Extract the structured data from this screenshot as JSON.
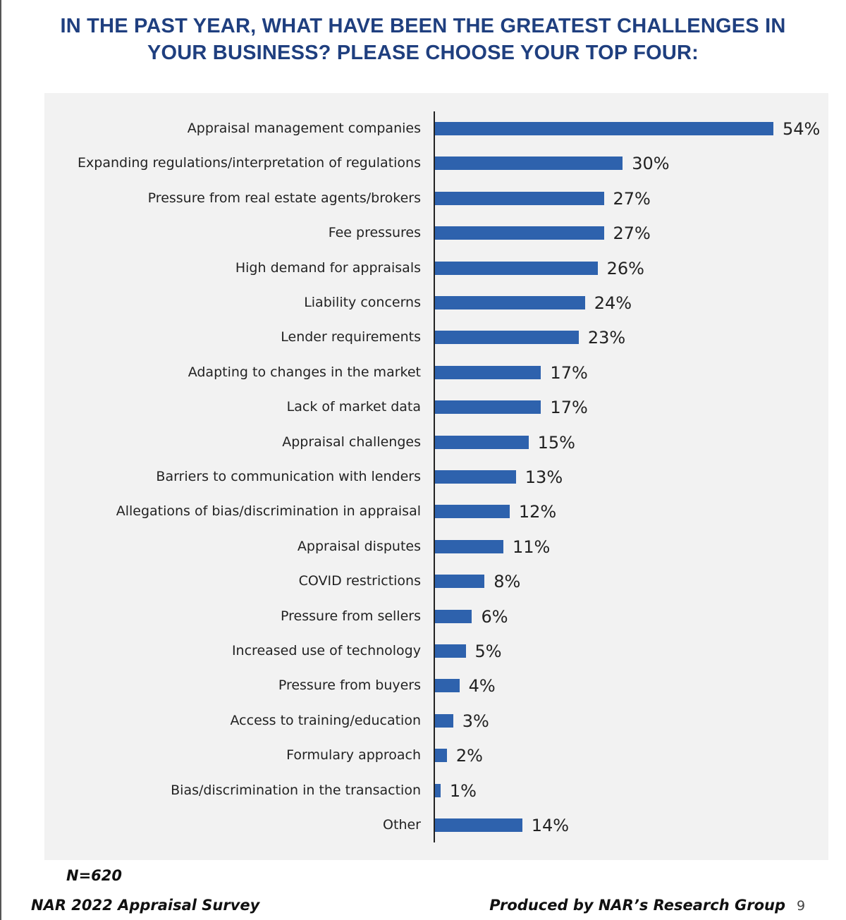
{
  "chart_data": {
    "type": "bar",
    "orientation": "horizontal",
    "title": "IN THE PAST YEAR, WHAT HAVE BEEN THE GREATEST CHALLENGES IN YOUR BUSINESS? PLEASE CHOOSE YOUR TOP FOUR:",
    "categories": [
      "Appraisal management companies",
      "Expanding regulations/interpretation of regulations",
      "Pressure from real estate agents/brokers",
      "Fee pressures",
      "High demand for appraisals",
      "Liability concerns",
      "Lender requirements",
      "Adapting to changes in the market",
      "Lack of market data",
      "Appraisal challenges",
      "Barriers to communication with lenders",
      "Allegations of bias/discrimination in appraisal",
      "Appraisal disputes",
      "COVID restrictions",
      "Pressure from sellers",
      "Increased use of technology",
      "Pressure from buyers",
      "Access to training/education",
      "Formulary approach",
      "Bias/discrimination in the transaction",
      "Other"
    ],
    "values": [
      54,
      30,
      27,
      27,
      26,
      24,
      23,
      17,
      17,
      15,
      13,
      12,
      11,
      8,
      6,
      5,
      4,
      3,
      2,
      1,
      14
    ],
    "value_labels": [
      "54%",
      "30%",
      "27%",
      "27%",
      "26%",
      "24%",
      "23%",
      "17%",
      "17%",
      "15%",
      "13%",
      "12%",
      "11%",
      "8%",
      "6%",
      "5%",
      "4%",
      "3%",
      "2%",
      "1%",
      "14%"
    ],
    "unit": "%",
    "xlim": [
      0,
      60
    ],
    "grid": false,
    "bar_color": "#2e62ad",
    "title_color": "#1f3f7f"
  },
  "footer": {
    "sample_size": "N=620",
    "left": "NAR 2022 Appraisal Survey",
    "right": "Produced by NAR’s Research Group",
    "page_number": "9"
  }
}
